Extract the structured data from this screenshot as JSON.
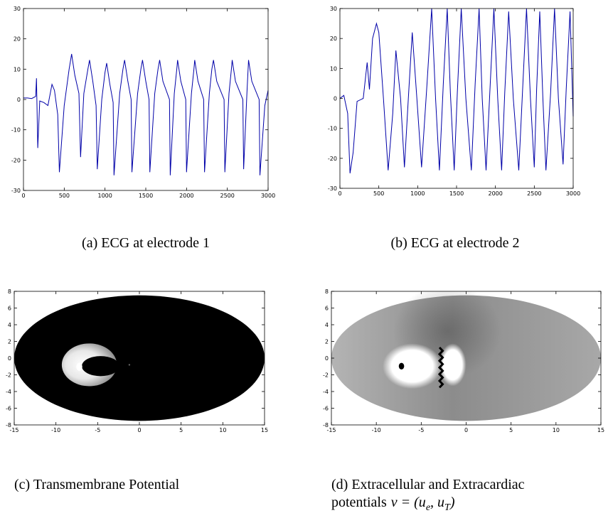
{
  "chart_data": [
    {
      "type": "line",
      "caption": "(a) ECG at electrode 1",
      "x": [
        0,
        50,
        100,
        150,
        160,
        175,
        200,
        250,
        300,
        350,
        380,
        420,
        440,
        500,
        560,
        590,
        630,
        680,
        700,
        740,
        790,
        810,
        850,
        890,
        905,
        960,
        1000,
        1020,
        1060,
        1100,
        1110,
        1180,
        1220,
        1240,
        1280,
        1320,
        1330,
        1400,
        1440,
        1460,
        1500,
        1540,
        1550,
        1610,
        1650,
        1670,
        1710,
        1790,
        1800,
        1850,
        1880,
        1890,
        1930,
        1990,
        2000,
        2060,
        2090,
        2100,
        2140,
        2210,
        2220,
        2280,
        2310,
        2330,
        2370,
        2460,
        2470,
        2520,
        2550,
        2560,
        2600,
        2690,
        2700,
        2740,
        2760,
        2800,
        2890,
        2900,
        2960,
        3000
      ],
      "series": [
        {
          "color": "#0000a8",
          "values": [
            0.5,
            0.5,
            0.3,
            1,
            7,
            -16,
            -0.5,
            -1,
            -2,
            5,
            3,
            -5,
            -24,
            -2,
            10,
            15,
            8,
            2,
            -19,
            2,
            10,
            13,
            6,
            -2,
            -23,
            0,
            9,
            12,
            5,
            -1,
            -25,
            2,
            10,
            13,
            6,
            0,
            -24,
            2,
            10,
            13,
            6,
            0,
            -24,
            2,
            10,
            13,
            6,
            0,
            -25,
            2,
            10,
            13,
            6,
            0,
            -24,
            2,
            10,
            13,
            6,
            0,
            -24,
            2,
            10,
            13,
            6,
            0,
            -24,
            2,
            10,
            13,
            6,
            0,
            -23,
            2,
            13,
            6,
            0,
            -25,
            -2,
            3
          ]
        }
      ],
      "xlim": [
        0,
        3000
      ],
      "ylim": [
        -30,
        30
      ],
      "xticks": [
        0,
        500,
        1000,
        1500,
        2000,
        2500,
        3000
      ],
      "yticks": [
        -30,
        -20,
        -10,
        0,
        10,
        20,
        30
      ]
    },
    {
      "type": "line",
      "caption": "(b) ECG at electrode 2",
      "x": [
        0,
        50,
        100,
        130,
        170,
        220,
        300,
        350,
        380,
        420,
        470,
        500,
        560,
        620,
        680,
        720,
        780,
        830,
        880,
        930,
        990,
        1050,
        1120,
        1180,
        1230,
        1280,
        1330,
        1380,
        1420,
        1470,
        1510,
        1560,
        1620,
        1690,
        1740,
        1790,
        1830,
        1880,
        1930,
        1980,
        2030,
        2080,
        2120,
        2170,
        2230,
        2300,
        2350,
        2400,
        2450,
        2500,
        2530,
        2570,
        2610,
        2650,
        2710,
        2760,
        2810,
        2870,
        2910,
        2960,
        3000
      ],
      "series": [
        {
          "color": "#0000a8",
          "values": [
            0,
            1,
            -5,
            -25,
            -18,
            -1,
            0,
            12,
            3,
            20,
            25,
            22,
            0,
            -24,
            -5,
            16,
            0,
            -23,
            0,
            22,
            0,
            -23,
            5,
            30,
            0,
            -24,
            5,
            30,
            2,
            -24,
            2,
            30,
            0,
            -24,
            5,
            30,
            0,
            -24,
            3,
            30,
            0,
            -24,
            2,
            29,
            0,
            -24,
            3,
            30,
            0,
            -23,
            3,
            29,
            0,
            -24,
            2,
            30,
            0,
            -22,
            3,
            29,
            -6
          ]
        }
      ],
      "xlim": [
        0,
        3000
      ],
      "ylim": [
        -30,
        30
      ],
      "xticks": [
        0,
        500,
        1000,
        1500,
        2000,
        2500,
        3000
      ],
      "yticks": [
        -30,
        -20,
        -10,
        0,
        10,
        20,
        30
      ]
    },
    {
      "type": "image",
      "variant": "transmembrane",
      "caption": "(c) Transmembrane Potential",
      "xlim": [
        -15,
        15
      ],
      "ylim": [
        -8,
        8
      ],
      "xticks": [
        -15,
        -10,
        -5,
        0,
        5,
        10,
        15
      ],
      "yticks": [
        -8,
        -6,
        -4,
        -2,
        0,
        2,
        4,
        6,
        8
      ]
    },
    {
      "type": "image",
      "variant": "extracellular",
      "caption_lines": [
        "(d) Extracellular and Extracardiac",
        "potentials"
      ],
      "caption_math": [
        "v = (u",
        "e",
        ", u",
        "T",
        ")"
      ],
      "xlim": [
        -15,
        15
      ],
      "ylim": [
        -8,
        8
      ],
      "xticks": [
        -15,
        -10,
        -5,
        0,
        5,
        10,
        15
      ],
      "yticks": [
        -8,
        -6,
        -4,
        -2,
        0,
        2,
        4,
        6,
        8
      ]
    }
  ]
}
